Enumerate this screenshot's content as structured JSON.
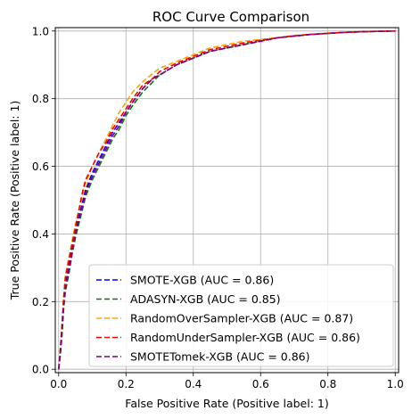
{
  "chart_data": {
    "type": "line",
    "title": "ROC Curve Comparison",
    "xlabel": "False Positive Rate (Positive label: 1)",
    "ylabel": "True Positive Rate (Positive label: 1)",
    "xlim": [
      -0.01,
      1.01
    ],
    "ylim": [
      -0.01,
      1.01
    ],
    "x_ticks": [
      "0.0",
      "0.2",
      "0.4",
      "0.6",
      "0.8",
      "1.0"
    ],
    "y_ticks": [
      "0.0",
      "0.2",
      "0.4",
      "0.6",
      "0.8",
      "1.0"
    ],
    "grid": true,
    "legend_position": "lower-right",
    "series": [
      {
        "name": "SMOTE-XGB (AUC = 0.86)",
        "color": "#0000ff",
        "line_style": "dashed",
        "x": [
          0.0,
          0.005,
          0.01,
          0.015,
          0.02,
          0.03,
          0.04,
          0.05,
          0.06,
          0.07,
          0.08,
          0.1,
          0.12,
          0.14,
          0.16,
          0.18,
          0.2,
          0.22,
          0.25,
          0.28,
          0.3,
          0.35,
          0.4,
          0.45,
          0.5,
          0.55,
          0.6,
          0.65,
          0.7,
          0.75,
          0.8,
          0.85,
          0.9,
          0.95,
          1.0
        ],
        "y": [
          0.0,
          0.05,
          0.12,
          0.2,
          0.25,
          0.3,
          0.36,
          0.41,
          0.45,
          0.49,
          0.53,
          0.58,
          0.62,
          0.66,
          0.7,
          0.73,
          0.76,
          0.79,
          0.83,
          0.86,
          0.87,
          0.9,
          0.92,
          0.94,
          0.95,
          0.96,
          0.97,
          0.98,
          0.985,
          0.99,
          0.993,
          0.996,
          0.998,
          0.999,
          1.0
        ]
      },
      {
        "name": "ADASYN-XGB (AUC = 0.85)",
        "color": "#008000",
        "line_style": "dashed",
        "x": [
          0.0,
          0.005,
          0.01,
          0.015,
          0.02,
          0.03,
          0.04,
          0.05,
          0.06,
          0.07,
          0.08,
          0.1,
          0.12,
          0.14,
          0.16,
          0.18,
          0.2,
          0.22,
          0.25,
          0.28,
          0.3,
          0.35,
          0.4,
          0.45,
          0.5,
          0.55,
          0.6,
          0.65,
          0.7,
          0.75,
          0.8,
          0.85,
          0.9,
          0.95,
          1.0
        ],
        "y": [
          0.0,
          0.04,
          0.1,
          0.18,
          0.23,
          0.28,
          0.34,
          0.39,
          0.43,
          0.47,
          0.51,
          0.56,
          0.6,
          0.64,
          0.68,
          0.71,
          0.75,
          0.78,
          0.82,
          0.85,
          0.87,
          0.9,
          0.92,
          0.94,
          0.95,
          0.96,
          0.97,
          0.98,
          0.985,
          0.99,
          0.993,
          0.996,
          0.998,
          0.999,
          1.0
        ]
      },
      {
        "name": "RandomOverSampler-XGB (AUC = 0.87)",
        "color": "#ffa500",
        "line_style": "dashed",
        "x": [
          0.0,
          0.005,
          0.01,
          0.015,
          0.02,
          0.03,
          0.04,
          0.05,
          0.06,
          0.07,
          0.08,
          0.1,
          0.12,
          0.14,
          0.16,
          0.18,
          0.2,
          0.22,
          0.25,
          0.28,
          0.3,
          0.35,
          0.4,
          0.45,
          0.5,
          0.55,
          0.6,
          0.65,
          0.7,
          0.75,
          0.8,
          0.85,
          0.9,
          0.95,
          1.0
        ],
        "y": [
          0.0,
          0.06,
          0.14,
          0.22,
          0.28,
          0.33,
          0.38,
          0.43,
          0.47,
          0.51,
          0.55,
          0.6,
          0.64,
          0.68,
          0.72,
          0.76,
          0.79,
          0.82,
          0.85,
          0.875,
          0.89,
          0.91,
          0.93,
          0.95,
          0.96,
          0.97,
          0.975,
          0.98,
          0.987,
          0.99,
          0.994,
          0.996,
          0.998,
          0.999,
          1.0
        ]
      },
      {
        "name": "RandomUnderSampler-XGB (AUC = 0.86)",
        "color": "#ff0000",
        "line_style": "dashed",
        "x": [
          0.0,
          0.005,
          0.01,
          0.015,
          0.02,
          0.03,
          0.04,
          0.05,
          0.06,
          0.07,
          0.08,
          0.1,
          0.12,
          0.14,
          0.16,
          0.18,
          0.2,
          0.22,
          0.25,
          0.28,
          0.3,
          0.35,
          0.4,
          0.45,
          0.5,
          0.55,
          0.6,
          0.65,
          0.7,
          0.75,
          0.8,
          0.85,
          0.9,
          0.95,
          1.0
        ],
        "y": [
          0.0,
          0.06,
          0.13,
          0.21,
          0.27,
          0.32,
          0.37,
          0.42,
          0.47,
          0.52,
          0.56,
          0.6,
          0.64,
          0.67,
          0.71,
          0.74,
          0.77,
          0.8,
          0.84,
          0.86,
          0.88,
          0.905,
          0.925,
          0.945,
          0.955,
          0.965,
          0.973,
          0.98,
          0.986,
          0.99,
          0.993,
          0.996,
          0.998,
          0.999,
          1.0
        ]
      },
      {
        "name": "SMOTETomek-XGB (AUC = 0.86)",
        "color": "#800080",
        "line_style": "dashed",
        "x": [
          0.0,
          0.005,
          0.01,
          0.015,
          0.02,
          0.03,
          0.04,
          0.05,
          0.06,
          0.07,
          0.08,
          0.1,
          0.12,
          0.14,
          0.16,
          0.18,
          0.2,
          0.22,
          0.25,
          0.28,
          0.3,
          0.35,
          0.4,
          0.45,
          0.5,
          0.55,
          0.6,
          0.65,
          0.7,
          0.75,
          0.8,
          0.85,
          0.9,
          0.95,
          1.0
        ],
        "y": [
          0.0,
          0.05,
          0.12,
          0.19,
          0.24,
          0.29,
          0.35,
          0.4,
          0.44,
          0.48,
          0.52,
          0.57,
          0.61,
          0.65,
          0.69,
          0.72,
          0.76,
          0.79,
          0.83,
          0.86,
          0.87,
          0.9,
          0.92,
          0.94,
          0.95,
          0.96,
          0.97,
          0.98,
          0.985,
          0.99,
          0.993,
          0.996,
          0.998,
          0.999,
          1.0
        ]
      }
    ]
  }
}
